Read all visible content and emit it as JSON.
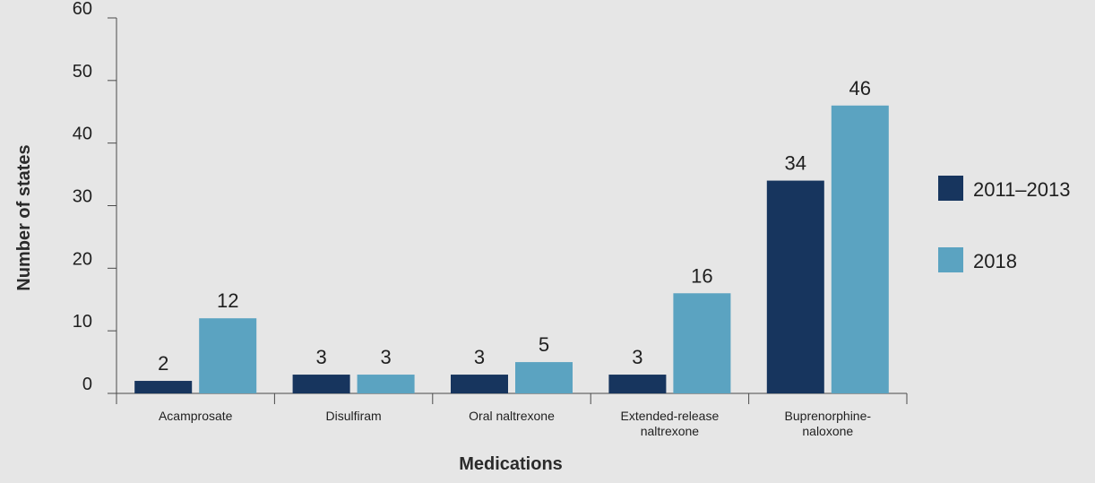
{
  "chart_data": {
    "type": "bar",
    "categories": [
      [
        "Acamprosate"
      ],
      [
        "Disulfiram"
      ],
      [
        "Oral naltrexone"
      ],
      [
        "Extended-release",
        "naltrexone"
      ],
      [
        "Buprenorphine-",
        "naloxone"
      ]
    ],
    "series": [
      {
        "name": "2011–2013",
        "color": "#17355e",
        "values": [
          2,
          3,
          3,
          3,
          34
        ],
        "labels": [
          "2",
          "3",
          "3",
          "3",
          "34"
        ]
      },
      {
        "name": "2018",
        "color": "#5ba3c1",
        "values": [
          12,
          3,
          5,
          16,
          46
        ],
        "labels": [
          "12",
          "3",
          "5",
          "16",
          "46"
        ]
      }
    ],
    "xlabel": "Medications",
    "ylabel": "Number of states",
    "ylim": [
      0,
      60
    ],
    "yticks": [
      0,
      10,
      20,
      30,
      40,
      50,
      60
    ],
    "grid": false,
    "legend_position": "right"
  }
}
